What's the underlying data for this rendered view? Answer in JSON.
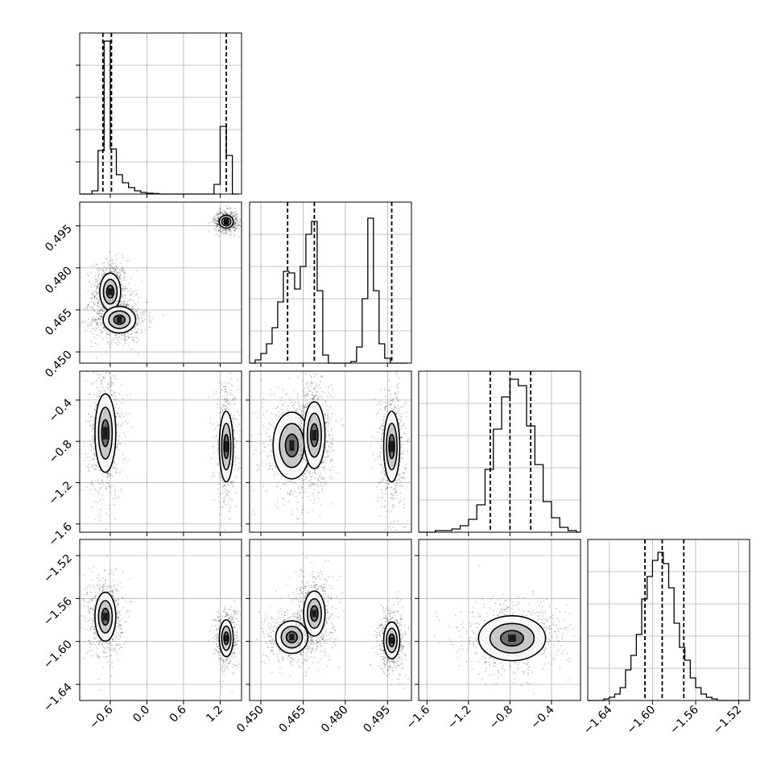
{
  "chart_data": {
    "type": "corner",
    "n_params": 4,
    "params": [
      {
        "index": 0,
        "xlim": [
          -1.1,
          1.55
        ],
        "ticks": [
          -0.6,
          0.0,
          0.6,
          1.2
        ],
        "tick_labels": [
          "−0.6",
          "0.0",
          "0.6",
          "1.2"
        ],
        "quantiles": [
          -0.72,
          -0.58,
          1.3
        ],
        "hist": {
          "bins": [
            -1.1,
            -1.0,
            -0.9,
            -0.8,
            -0.7,
            -0.6,
            -0.5,
            -0.4,
            -0.3,
            -0.2,
            -0.1,
            0.0,
            0.1,
            0.2,
            0.3,
            0.4,
            0.5,
            0.6,
            0.7,
            0.8,
            0.9,
            1.0,
            1.1,
            1.2,
            1.3,
            1.4,
            1.5
          ],
          "counts": [
            0,
            0,
            2,
            27,
            95,
            28,
            12,
            7,
            4,
            2,
            1,
            0.5,
            0.3,
            0,
            0,
            0,
            0,
            0,
            0,
            0,
            0,
            0,
            6,
            42,
            24,
            0
          ],
          "ylim": [
            0,
            100
          ]
        }
      },
      {
        "index": 1,
        "xlim": [
          0.446,
          0.5035
        ],
        "ticks": [
          0.45,
          0.465,
          0.48,
          0.495
        ],
        "tick_labels": [
          "0.450",
          "0.465",
          "0.480",
          "0.495"
        ],
        "quantiles": [
          0.4595,
          0.469,
          0.4965
        ],
        "hist": {
          "bins": [
            0.446,
            0.448,
            0.45,
            0.452,
            0.454,
            0.456,
            0.458,
            0.46,
            0.462,
            0.464,
            0.466,
            0.468,
            0.47,
            0.472,
            0.474,
            0.476,
            0.478,
            0.48,
            0.482,
            0.484,
            0.486,
            0.488,
            0.49,
            0.492,
            0.494,
            0.496,
            0.498,
            0.5,
            0.502
          ],
          "counts": [
            0,
            2,
            6,
            12,
            22,
            38,
            57,
            56,
            46,
            60,
            80,
            88,
            45,
            5,
            0,
            0,
            0,
            0,
            1,
            10,
            40,
            90,
            45,
            12,
            3,
            0,
            0,
            0
          ],
          "ylim": [
            0,
            100
          ]
        }
      },
      {
        "index": 2,
        "xlim": [
          -1.68,
          -0.12
        ],
        "ticks": [
          -1.6,
          -1.2,
          -0.8,
          -0.4
        ],
        "tick_labels": [
          "−1.6",
          "−1.2",
          "−0.8",
          "−0.4"
        ],
        "quantiles": [
          -0.99,
          -0.8,
          -0.6
        ],
        "hist": {
          "bins": [
            -1.68,
            -1.6,
            -1.52,
            -1.44,
            -1.36,
            -1.28,
            -1.2,
            -1.12,
            -1.04,
            -0.96,
            -0.88,
            -0.8,
            -0.72,
            -0.64,
            -0.56,
            -0.48,
            -0.4,
            -0.32,
            -0.24,
            -0.16,
            -0.12
          ],
          "counts": [
            0,
            0,
            1,
            1,
            2,
            4,
            8,
            17,
            39,
            64,
            84,
            95,
            91,
            66,
            42,
            19,
            9,
            3,
            1,
            0
          ],
          "ylim": [
            0,
            100
          ]
        }
      },
      {
        "index": 3,
        "xlim": [
          -1.66,
          -1.51
        ],
        "ticks": [
          -1.64,
          -1.6,
          -1.56,
          -1.52
        ],
        "tick_labels": [
          "−1.64",
          "−1.60",
          "−1.56",
          "−1.52"
        ],
        "quantiles": [
          -1.607,
          -1.591,
          -1.571
        ],
        "hist": {
          "bins": [
            -1.66,
            -1.655,
            -1.65,
            -1.645,
            -1.64,
            -1.635,
            -1.63,
            -1.625,
            -1.62,
            -1.615,
            -1.61,
            -1.605,
            -1.6,
            -1.595,
            -1.59,
            -1.585,
            -1.58,
            -1.575,
            -1.57,
            -1.565,
            -1.56,
            -1.555,
            -1.55,
            -1.545,
            -1.54,
            -1.535,
            -1.53,
            -1.525,
            -1.52,
            -1.515,
            -1.51
          ],
          "counts": [
            0,
            0,
            0,
            1,
            2,
            4,
            8,
            19,
            28,
            41,
            63,
            77,
            87,
            92,
            85,
            70,
            48,
            33,
            25,
            14,
            8,
            4,
            2,
            1,
            0,
            0,
            0,
            0,
            0,
            0
          ],
          "ylim": [
            0,
            100
          ]
        }
      }
    ],
    "pairs": [
      {
        "x": 0,
        "y": 1,
        "ylim": [
          0.446,
          0.5035
        ],
        "yticks": [
          0.45,
          0.465,
          0.48,
          0.495
        ],
        "ytick_labels": [
          "0.450",
          "0.465",
          "0.480",
          "0.495"
        ],
        "clusters": [
          {
            "cx": -0.6,
            "cy": 0.4715,
            "sx": 0.09,
            "sy": 0.0035,
            "w": 1.0
          },
          {
            "cx": -0.45,
            "cy": 0.4615,
            "sx": 0.14,
            "sy": 0.0025,
            "w": 1.0
          },
          {
            "cx": 1.3,
            "cy": 0.4965,
            "sx": 0.06,
            "sy": 0.0012,
            "w": 0.9
          }
        ]
      },
      {
        "x": 0,
        "y": 2,
        "ylim": [
          -1.68,
          -0.12
        ],
        "yticks": [
          -1.6,
          -1.2,
          -0.8,
          -0.4
        ],
        "ytick_labels": [
          "−1.6",
          "−1.2",
          "−0.8",
          "−0.4"
        ],
        "clusters": [
          {
            "cx": -0.68,
            "cy": -0.72,
            "sx": 0.09,
            "sy": 0.2,
            "w": 1.0
          },
          {
            "cx": 1.3,
            "cy": -0.85,
            "sx": 0.06,
            "sy": 0.18,
            "w": 0.75
          }
        ]
      },
      {
        "x": 1,
        "y": 2,
        "ylim": [
          -1.68,
          -0.12
        ],
        "yticks": [
          -1.6,
          -1.2,
          -0.8,
          -0.4
        ],
        "ytick_labels": [
          "−1.6",
          "−1.2",
          "−0.8",
          "−0.4"
        ],
        "clusters": [
          {
            "cx": 0.461,
            "cy": -0.84,
            "sx": 0.0035,
            "sy": 0.17,
            "w": 0.8
          },
          {
            "cx": 0.469,
            "cy": -0.74,
            "sx": 0.002,
            "sy": 0.17,
            "w": 1.0
          },
          {
            "cx": 0.4965,
            "cy": -0.85,
            "sx": 0.0015,
            "sy": 0.18,
            "w": 0.9
          }
        ]
      },
      {
        "x": 0,
        "y": 3,
        "ylim": [
          -1.655,
          -1.505
        ],
        "yticks": [
          -1.64,
          -1.6,
          -1.56,
          -1.52
        ],
        "ytick_labels": [
          "−1.64",
          "−1.60",
          "−1.56",
          "−1.52"
        ],
        "clusters": [
          {
            "cx": -0.68,
            "cy": -1.577,
            "sx": 0.09,
            "sy": 0.012,
            "w": 1.0
          },
          {
            "cx": 1.3,
            "cy": -1.597,
            "sx": 0.06,
            "sy": 0.009,
            "w": 0.75
          }
        ]
      },
      {
        "x": 1,
        "y": 3,
        "ylim": [
          -1.655,
          -1.505
        ],
        "yticks": [
          -1.64,
          -1.6,
          -1.56,
          -1.52
        ],
        "ytick_labels": [
          "−1.64",
          "−1.60",
          "−1.56",
          "−1.52"
        ],
        "clusters": [
          {
            "cx": 0.461,
            "cy": -1.596,
            "sx": 0.003,
            "sy": 0.008,
            "w": 0.75
          },
          {
            "cx": 0.469,
            "cy": -1.574,
            "sx": 0.002,
            "sy": 0.011,
            "w": 1.0
          },
          {
            "cx": 0.4965,
            "cy": -1.599,
            "sx": 0.0015,
            "sy": 0.009,
            "w": 0.9
          }
        ]
      },
      {
        "x": 2,
        "y": 3,
        "ylim": [
          -1.655,
          -1.505
        ],
        "yticks": [
          -1.64,
          -1.6,
          -1.56,
          -1.52
        ],
        "ytick_labels": [
          "−1.64",
          "−1.60",
          "−1.56",
          "−1.52"
        ],
        "clusters": [
          {
            "cx": -0.78,
            "cy": -1.597,
            "sx": 0.17,
            "sy": 0.011,
            "w": 1.0
          }
        ]
      }
    ],
    "grid": true,
    "colors": {
      "ink": "#000000",
      "grid": "#b0b0b0",
      "background": "#ffffff"
    }
  }
}
